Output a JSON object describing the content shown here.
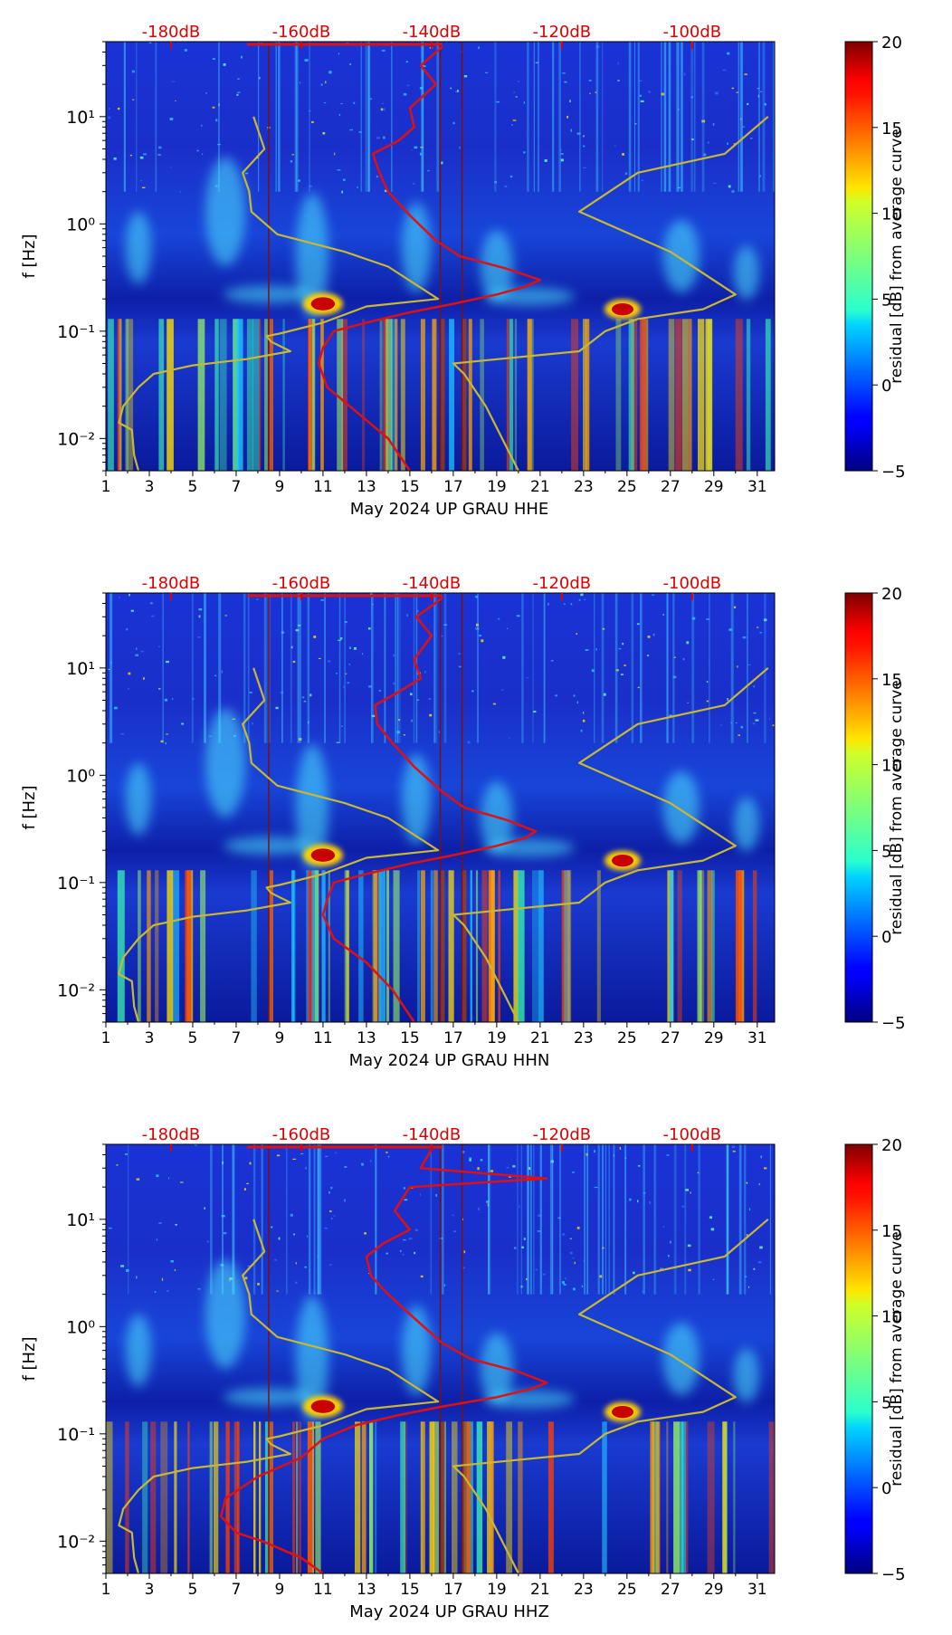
{
  "chart_data": [
    {
      "type": "heatmap",
      "xlabel": "May 2024 UP GRAU  HHE",
      "ylabel": "f [Hz]",
      "x_ticks": [
        "1",
        "3",
        "5",
        "7",
        "9",
        "11",
        "13",
        "15",
        "17",
        "19",
        "21",
        "23",
        "25",
        "27",
        "29",
        "31"
      ],
      "xlim": [
        1,
        31.8
      ],
      "y_scale": "log",
      "y_ticks": [
        "10⁻²",
        "10⁻¹",
        "10⁰",
        "10¹"
      ],
      "ylim": [
        0.005,
        50
      ],
      "top_axis_labels": [
        "-180dB",
        "-160dB",
        "-140dB",
        "-120dB",
        "-100dB"
      ],
      "top_axis_color": "#e00000",
      "colorbar": {
        "label": "residual [dB] from average curve",
        "ticks": [
          "−5",
          "0",
          "5",
          "10",
          "15",
          "20"
        ],
        "range": [
          -5,
          20
        ],
        "colormap": "jet"
      },
      "series": [
        {
          "color": "#e01010",
          "points": [
            [
              16.5,
              45
            ],
            [
              15.5,
              30
            ],
            [
              16.2,
              20
            ],
            [
              15.0,
              12
            ],
            [
              15.2,
              8
            ],
            [
              14.5,
              6
            ],
            [
              13.3,
              4.5
            ],
            [
              13.6,
              3
            ],
            [
              14.0,
              2
            ],
            [
              15.0,
              1.2
            ],
            [
              16.2,
              0.7
            ],
            [
              17.3,
              0.5
            ],
            [
              19.5,
              0.38
            ],
            [
              21.0,
              0.3
            ],
            [
              20.3,
              0.26
            ],
            [
              19.0,
              0.22
            ],
            [
              17.0,
              0.18
            ],
            [
              15.0,
              0.15
            ],
            [
              13.0,
              0.12
            ],
            [
              11.5,
              0.1
            ],
            [
              11.0,
              0.07
            ],
            [
              10.8,
              0.05
            ],
            [
              11.2,
              0.03
            ],
            [
              12.5,
              0.018
            ],
            [
              14.0,
              0.01
            ],
            [
              15.0,
              0.005
            ]
          ]
        },
        {
          "color": "#c8b832",
          "points": [
            [
              7.8,
              10
            ],
            [
              8.3,
              5
            ],
            [
              7.3,
              3
            ],
            [
              7.6,
              2
            ],
            [
              7.7,
              1.3
            ],
            [
              8.9,
              0.8
            ],
            [
              12.0,
              0.55
            ],
            [
              14.0,
              0.4
            ],
            [
              16.3,
              0.2
            ],
            [
              13.0,
              0.17
            ],
            [
              11.0,
              0.12
            ],
            [
              9.0,
              0.095
            ],
            [
              8.4,
              0.09
            ],
            [
              8.6,
              0.08
            ],
            [
              9.5,
              0.065
            ],
            [
              7.5,
              0.055
            ],
            [
              5.0,
              0.048
            ],
            [
              3.2,
              0.04
            ],
            [
              2.5,
              0.03
            ],
            [
              1.8,
              0.02
            ],
            [
              1.6,
              0.014
            ],
            [
              2.2,
              0.012
            ],
            [
              2.3,
              0.007
            ],
            [
              2.5,
              0.005
            ]
          ]
        },
        {
          "color": "#c8b832",
          "points": [
            [
              31.5,
              10
            ],
            [
              29.5,
              4.5
            ],
            [
              25.5,
              3
            ],
            [
              22.8,
              1.3
            ],
            [
              27.0,
              0.55
            ],
            [
              30.0,
              0.22
            ],
            [
              28.5,
              0.16
            ],
            [
              25.5,
              0.13
            ],
            [
              24.0,
              0.1
            ],
            [
              22.8,
              0.065
            ],
            [
              17.0,
              0.05
            ],
            [
              17.5,
              0.04
            ],
            [
              18.5,
              0.02
            ],
            [
              20.0,
              0.005
            ]
          ]
        }
      ],
      "hot_spots": [
        [
          11.0,
          0.18,
          22
        ],
        [
          24.8,
          0.16,
          20
        ]
      ]
    },
    {
      "type": "heatmap",
      "xlabel": "May 2024 UP GRAU  HHN",
      "ylabel": "f [Hz]",
      "x_ticks": [
        "1",
        "3",
        "5",
        "7",
        "9",
        "11",
        "13",
        "15",
        "17",
        "19",
        "21",
        "23",
        "25",
        "27",
        "29",
        "31"
      ],
      "xlim": [
        1,
        31.8
      ],
      "y_scale": "log",
      "y_ticks": [
        "10⁻²",
        "10⁻¹",
        "10⁰",
        "10¹"
      ],
      "ylim": [
        0.005,
        50
      ],
      "top_axis_labels": [
        "-180dB",
        "-160dB",
        "-140dB",
        "-120dB",
        "-100dB"
      ],
      "top_axis_color": "#e00000",
      "colorbar": {
        "label": "residual [dB] from average curve",
        "ticks": [
          "−5",
          "0",
          "5",
          "10",
          "15",
          "20"
        ],
        "range": [
          -5,
          20
        ],
        "colormap": "jet"
      },
      "series": [
        {
          "color": "#e01010",
          "points": [
            [
              16.5,
              45
            ],
            [
              15.3,
              30
            ],
            [
              16.0,
              20
            ],
            [
              15.2,
              12
            ],
            [
              15.5,
              8
            ],
            [
              14.5,
              6
            ],
            [
              13.4,
              4.5
            ],
            [
              13.5,
              3
            ],
            [
              14.2,
              2
            ],
            [
              15.2,
              1.2
            ],
            [
              16.5,
              0.7
            ],
            [
              17.5,
              0.5
            ],
            [
              19.5,
              0.38
            ],
            [
              20.8,
              0.3
            ],
            [
              20.3,
              0.26
            ],
            [
              19.0,
              0.22
            ],
            [
              17.0,
              0.18
            ],
            [
              15.0,
              0.15
            ],
            [
              13.0,
              0.12
            ],
            [
              11.5,
              0.1
            ],
            [
              11.2,
              0.07
            ],
            [
              11.0,
              0.05
            ],
            [
              11.5,
              0.03
            ],
            [
              13.0,
              0.018
            ],
            [
              14.2,
              0.01
            ],
            [
              15.2,
              0.005
            ]
          ]
        },
        {
          "color": "#c8b832",
          "points": [
            [
              7.8,
              10
            ],
            [
              8.3,
              5
            ],
            [
              7.3,
              3
            ],
            [
              7.6,
              2
            ],
            [
              7.7,
              1.3
            ],
            [
              8.9,
              0.8
            ],
            [
              12.0,
              0.55
            ],
            [
              14.0,
              0.4
            ],
            [
              16.3,
              0.2
            ],
            [
              13.0,
              0.17
            ],
            [
              11.0,
              0.12
            ],
            [
              9.0,
              0.095
            ],
            [
              8.4,
              0.09
            ],
            [
              8.6,
              0.08
            ],
            [
              9.5,
              0.065
            ],
            [
              7.5,
              0.055
            ],
            [
              5.0,
              0.048
            ],
            [
              3.2,
              0.04
            ],
            [
              2.5,
              0.03
            ],
            [
              1.8,
              0.02
            ],
            [
              1.6,
              0.014
            ],
            [
              2.2,
              0.012
            ],
            [
              2.3,
              0.007
            ],
            [
              2.5,
              0.005
            ]
          ]
        },
        {
          "color": "#c8b832",
          "points": [
            [
              31.5,
              10
            ],
            [
              29.5,
              4.5
            ],
            [
              25.5,
              3
            ],
            [
              22.8,
              1.3
            ],
            [
              27.0,
              0.55
            ],
            [
              30.0,
              0.22
            ],
            [
              28.5,
              0.16
            ],
            [
              25.5,
              0.13
            ],
            [
              24.0,
              0.1
            ],
            [
              22.8,
              0.065
            ],
            [
              17.0,
              0.05
            ],
            [
              17.5,
              0.04
            ],
            [
              18.5,
              0.02
            ],
            [
              20.0,
              0.005
            ]
          ]
        }
      ],
      "hot_spots": [
        [
          11.0,
          0.18,
          22
        ],
        [
          24.8,
          0.16,
          20
        ]
      ]
    },
    {
      "type": "heatmap",
      "xlabel": "May 2024 UP GRAU  HHZ",
      "ylabel": "f [Hz]",
      "x_ticks": [
        "1",
        "3",
        "5",
        "7",
        "9",
        "11",
        "13",
        "15",
        "17",
        "19",
        "21",
        "23",
        "25",
        "27",
        "29",
        "31"
      ],
      "xlim": [
        1,
        31.8
      ],
      "y_scale": "log",
      "y_ticks": [
        "10⁻²",
        "10⁻¹",
        "10⁰",
        "10¹"
      ],
      "ylim": [
        0.005,
        50
      ],
      "top_axis_labels": [
        "-180dB",
        "-160dB",
        "-140dB",
        "-120dB",
        "-100dB"
      ],
      "top_axis_color": "#e00000",
      "colorbar": {
        "label": "residual [dB] from average curve",
        "ticks": [
          "−5",
          "0",
          "5",
          "10",
          "15",
          "20"
        ],
        "range": [
          -5,
          20
        ],
        "colormap": "jet"
      },
      "series": [
        {
          "color": "#e01010",
          "points": [
            [
              16.0,
              45
            ],
            [
              15.5,
              30
            ],
            [
              21.3,
              24
            ],
            [
              15.0,
              20
            ],
            [
              14.3,
              12
            ],
            [
              15.0,
              8
            ],
            [
              13.8,
              6
            ],
            [
              13.0,
              4.5
            ],
            [
              13.2,
              3
            ],
            [
              14.0,
              2
            ],
            [
              15.2,
              1.2
            ],
            [
              16.5,
              0.7
            ],
            [
              17.8,
              0.5
            ],
            [
              20.0,
              0.38
            ],
            [
              21.3,
              0.3
            ],
            [
              20.5,
              0.26
            ],
            [
              19.0,
              0.22
            ],
            [
              16.5,
              0.18
            ],
            [
              14.5,
              0.15
            ],
            [
              12.5,
              0.12
            ],
            [
              11.0,
              0.09
            ],
            [
              10.0,
              0.06
            ],
            [
              8.0,
              0.04
            ],
            [
              6.5,
              0.025
            ],
            [
              6.3,
              0.017
            ],
            [
              7.0,
              0.012
            ],
            [
              8.2,
              0.01
            ],
            [
              10.0,
              0.007
            ],
            [
              11.0,
              0.005
            ]
          ]
        },
        {
          "color": "#c8b832",
          "points": [
            [
              7.8,
              10
            ],
            [
              8.3,
              5
            ],
            [
              7.3,
              3
            ],
            [
              7.6,
              2
            ],
            [
              7.7,
              1.3
            ],
            [
              8.9,
              0.8
            ],
            [
              12.0,
              0.55
            ],
            [
              14.0,
              0.4
            ],
            [
              16.3,
              0.2
            ],
            [
              13.0,
              0.17
            ],
            [
              11.0,
              0.12
            ],
            [
              9.0,
              0.095
            ],
            [
              8.4,
              0.09
            ],
            [
              8.6,
              0.08
            ],
            [
              9.5,
              0.065
            ],
            [
              7.5,
              0.055
            ],
            [
              5.0,
              0.048
            ],
            [
              3.2,
              0.04
            ],
            [
              2.5,
              0.03
            ],
            [
              1.8,
              0.02
            ],
            [
              1.6,
              0.014
            ],
            [
              2.2,
              0.012
            ],
            [
              2.3,
              0.007
            ],
            [
              2.5,
              0.005
            ]
          ]
        },
        {
          "color": "#c8b832",
          "points": [
            [
              31.5,
              10
            ],
            [
              29.5,
              4.5
            ],
            [
              25.5,
              3
            ],
            [
              22.8,
              1.3
            ],
            [
              27.0,
              0.55
            ],
            [
              30.0,
              0.22
            ],
            [
              28.5,
              0.16
            ],
            [
              25.5,
              0.13
            ],
            [
              24.0,
              0.1
            ],
            [
              22.8,
              0.065
            ],
            [
              17.0,
              0.05
            ],
            [
              17.5,
              0.04
            ],
            [
              18.5,
              0.02
            ],
            [
              20.0,
              0.005
            ]
          ]
        }
      ],
      "hot_spots": [
        [
          11.0,
          0.18,
          22
        ],
        [
          24.8,
          0.16,
          20
        ]
      ]
    }
  ]
}
